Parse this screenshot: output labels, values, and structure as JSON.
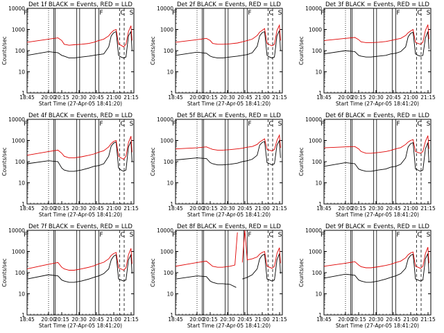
{
  "figure": {
    "panel_title_suffix": "BLACK = Events, RED = LLD",
    "xlabel": "Start Time (27-Apr-05 18:41:20)",
    "ylabel": "Counts/sec",
    "xticks": [
      "18:45",
      "20:00",
      "20:15",
      "20:30",
      "20:45",
      "21:00",
      "21:15"
    ],
    "yticks": [
      "1",
      "10",
      "100",
      "1000",
      "10000"
    ],
    "colors": {
      "events": "#000000",
      "lld": "#e00000",
      "axes": "#000000"
    }
  },
  "chart_data": [
    {
      "type": "line",
      "title": "Det 1f",
      "xlabel": "Start Time (27-Apr-05 18:41:20)",
      "ylabel": "Counts/sec",
      "xlim_min": [
        -3.7,
        36
      ],
      "ylim": [
        1,
        10000
      ],
      "ylog": true,
      "markers": [
        "F",
        "C",
        "S"
      ],
      "series": [
        {
          "name": "Events",
          "color": "#000000",
          "x": [
            -3.7,
            0,
            5,
            7,
            8,
            10,
            12,
            15,
            18,
            20,
            22,
            24,
            26,
            27,
            28,
            29,
            30,
            31,
            32,
            33,
            34,
            35,
            36
          ],
          "y": [
            60,
            90,
            80,
            60,
            55,
            45,
            45,
            50,
            55,
            60,
            65,
            70,
            150,
            500,
            700,
            800,
            60,
            50,
            45,
            50,
            500,
            800,
            100
          ]
        },
        {
          "name": "LLD",
          "color": "#e00000",
          "x": [
            -3.7,
            0,
            5,
            7,
            8,
            10,
            12,
            15,
            18,
            20,
            22,
            24,
            26,
            27,
            28,
            29,
            30,
            31,
            32,
            33,
            34,
            35,
            36
          ],
          "y": [
            250,
            350,
            400,
            300,
            200,
            180,
            190,
            200,
            220,
            250,
            300,
            350,
            500,
            700,
            900,
            1000,
            200,
            180,
            150,
            200,
            800,
            1500,
            300
          ]
        }
      ]
    },
    {
      "type": "line",
      "title": "Det 2f",
      "xlabel": "Start Time (27-Apr-05 18:41:20)",
      "ylabel": "Counts/sec",
      "xlim_min": [
        -3.7,
        36
      ],
      "ylim": [
        1,
        10000
      ],
      "ylog": true,
      "markers": [
        "F",
        "C",
        "S"
      ],
      "series": [
        {
          "name": "Events",
          "color": "#000000",
          "x": [
            -3.7,
            0,
            5,
            7,
            8,
            10,
            12,
            15,
            18,
            20,
            22,
            24,
            26,
            27,
            28,
            29,
            30,
            31,
            32,
            33,
            34,
            35,
            36
          ],
          "y": [
            60,
            85,
            75,
            55,
            50,
            45,
            45,
            50,
            55,
            60,
            65,
            80,
            160,
            500,
            700,
            800,
            60,
            50,
            45,
            50,
            500,
            900,
            100
          ]
        },
        {
          "name": "LLD",
          "color": "#e00000",
          "x": [
            -3.7,
            0,
            5,
            7,
            8,
            10,
            12,
            15,
            18,
            20,
            22,
            24,
            26,
            27,
            28,
            29,
            30,
            31,
            32,
            33,
            34,
            35,
            36
          ],
          "y": [
            250,
            330,
            380,
            300,
            220,
            200,
            200,
            210,
            230,
            260,
            300,
            350,
            520,
            750,
            900,
            1100,
            220,
            190,
            170,
            200,
            900,
            1600,
            300
          ]
        }
      ]
    },
    {
      "type": "line",
      "title": "Det 3f",
      "xlabel": "Start Time (27-Apr-05 18:41:20)",
      "ylabel": "Counts/sec",
      "xlim_min": [
        -3.7,
        36
      ],
      "ylim": [
        1,
        10000
      ],
      "ylog": true,
      "markers": [
        "F",
        "C",
        "S"
      ],
      "series": [
        {
          "name": "Events",
          "color": "#000000",
          "x": [
            -3.7,
            0,
            5,
            7,
            8,
            10,
            12,
            15,
            18,
            20,
            22,
            24,
            26,
            27,
            28,
            29,
            30,
            31,
            32,
            33,
            34,
            35,
            36
          ],
          "y": [
            70,
            100,
            90,
            60,
            55,
            50,
            50,
            55,
            60,
            70,
            75,
            90,
            150,
            450,
            650,
            750,
            70,
            60,
            55,
            60,
            400,
            800,
            120
          ]
        },
        {
          "name": "LLD",
          "color": "#e00000",
          "x": [
            -3.7,
            0,
            5,
            7,
            8,
            10,
            12,
            15,
            18,
            20,
            22,
            24,
            26,
            27,
            28,
            29,
            30,
            31,
            32,
            33,
            34,
            35,
            36
          ],
          "y": [
            300,
            380,
            420,
            330,
            260,
            240,
            240,
            250,
            270,
            300,
            340,
            380,
            520,
            700,
            850,
            1000,
            250,
            220,
            200,
            250,
            900,
            1700,
            350
          ]
        }
      ]
    },
    {
      "type": "line",
      "title": "Det 4f",
      "xlabel": "Start Time (27-Apr-05 18:41:20)",
      "ylabel": "Counts/sec",
      "xlim_min": [
        -3.7,
        36
      ],
      "ylim": [
        1,
        10000
      ],
      "ylog": true,
      "markers": [
        "F",
        "C",
        "S"
      ],
      "series": [
        {
          "name": "Events",
          "color": "#000000",
          "x": [
            -3.7,
            0,
            5,
            7,
            8,
            10,
            12,
            15,
            18,
            20,
            22,
            24,
            26,
            27,
            28,
            29,
            30,
            31,
            32,
            33,
            34,
            35,
            36
          ],
          "y": [
            80,
            110,
            100,
            50,
            40,
            35,
            35,
            40,
            50,
            60,
            65,
            80,
            180,
            550,
            750,
            850,
            50,
            40,
            35,
            40,
            500,
            900,
            100
          ]
        },
        {
          "name": "LLD",
          "color": "#e00000",
          "x": [
            -3.7,
            0,
            5,
            7,
            8,
            10,
            12,
            15,
            18,
            20,
            22,
            24,
            26,
            27,
            28,
            29,
            30,
            31,
            32,
            33,
            34,
            35,
            36
          ],
          "y": [
            200,
            300,
            350,
            250,
            180,
            150,
            150,
            170,
            200,
            230,
            280,
            330,
            500,
            720,
            900,
            1000,
            180,
            150,
            130,
            180,
            800,
            1600,
            280
          ]
        }
      ]
    },
    {
      "type": "line",
      "title": "Det 5f",
      "xlabel": "Start Time (27-Apr-05 18:41:20)",
      "ylabel": "Counts/sec",
      "xlim_min": [
        -3.7,
        36
      ],
      "ylim": [
        1,
        10000
      ],
      "ylog": true,
      "markers": [
        "F",
        "C",
        "S"
      ],
      "series": [
        {
          "name": "Events",
          "color": "#000000",
          "x": [
            -3.7,
            0,
            5,
            7,
            8,
            10,
            12,
            15,
            18,
            20,
            22,
            24,
            26,
            27,
            28,
            29,
            30,
            31,
            32,
            33,
            34,
            35,
            36
          ],
          "y": [
            120,
            150,
            140,
            90,
            80,
            70,
            70,
            75,
            85,
            100,
            110,
            130,
            200,
            600,
            800,
            900,
            90,
            80,
            70,
            80,
            600,
            1000,
            150
          ]
        },
        {
          "name": "LLD",
          "color": "#e00000",
          "x": [
            -3.7,
            0,
            5,
            7,
            8,
            10,
            12,
            15,
            18,
            20,
            22,
            24,
            26,
            27,
            28,
            29,
            30,
            31,
            32,
            33,
            34,
            35,
            36
          ],
          "y": [
            400,
            450,
            500,
            420,
            380,
            350,
            350,
            370,
            400,
            430,
            480,
            520,
            650,
            850,
            1000,
            1200,
            380,
            350,
            320,
            380,
            1000,
            1800,
            450
          ]
        }
      ]
    },
    {
      "type": "line",
      "title": "Det 6f",
      "xlabel": "Start Time (27-Apr-05 18:41:20)",
      "ylabel": "Counts/sec",
      "xlim_min": [
        -3.7,
        36
      ],
      "ylim": [
        1,
        10000
      ],
      "ylog": true,
      "markers": [
        "F",
        "C",
        "S"
      ],
      "series": [
        {
          "name": "Events",
          "color": "#000000",
          "x": [
            -3.7,
            0,
            5,
            7,
            8,
            10,
            12,
            15,
            18,
            20,
            22,
            24,
            26,
            27,
            28,
            29,
            30,
            31,
            32,
            33,
            34,
            35,
            36
          ],
          "y": [
            60,
            90,
            80,
            45,
            40,
            35,
            35,
            40,
            45,
            55,
            60,
            75,
            150,
            500,
            700,
            800,
            45,
            40,
            35,
            40,
            400,
            800,
            90
          ]
        },
        {
          "name": "LLD",
          "color": "#e00000",
          "x": [
            -3.7,
            0,
            5,
            7,
            8,
            10,
            12,
            15,
            18,
            20,
            22,
            24,
            26,
            27,
            28,
            29,
            30,
            31,
            32,
            33,
            34,
            35,
            36
          ],
          "y": [
            450,
            500,
            520,
            400,
            300,
            250,
            250,
            270,
            300,
            340,
            400,
            460,
            650,
            850,
            1000,
            1100,
            300,
            270,
            250,
            300,
            900,
            1700,
            400
          ]
        }
      ]
    },
    {
      "type": "line",
      "title": "Det 7f",
      "xlabel": "Start Time (27-Apr-05 18:41:20)",
      "ylabel": "Counts/sec",
      "xlim_min": [
        -3.7,
        36
      ],
      "ylim": [
        1,
        10000
      ],
      "ylog": true,
      "markers": [
        "F",
        "C",
        "S"
      ],
      "series": [
        {
          "name": "Events",
          "color": "#000000",
          "x": [
            -3.7,
            0,
            5,
            7,
            8,
            10,
            12,
            15,
            18,
            20,
            22,
            24,
            26,
            27,
            28,
            29,
            30,
            31,
            32,
            33,
            34,
            35,
            36
          ],
          "y": [
            50,
            80,
            70,
            45,
            40,
            35,
            35,
            40,
            50,
            60,
            70,
            90,
            150,
            400,
            600,
            700,
            50,
            45,
            40,
            45,
            400,
            700,
            90
          ]
        },
        {
          "name": "LLD",
          "color": "#e00000",
          "x": [
            -3.7,
            0,
            5,
            7,
            8,
            10,
            12,
            15,
            18,
            20,
            22,
            24,
            26,
            27,
            28,
            29,
            30,
            31,
            32,
            33,
            34,
            35,
            36
          ],
          "y": [
            150,
            250,
            300,
            180,
            150,
            130,
            130,
            150,
            180,
            210,
            260,
            310,
            450,
            650,
            800,
            900,
            170,
            150,
            130,
            170,
            700,
            1400,
            260
          ]
        }
      ]
    },
    {
      "type": "line",
      "title": "Det 8f",
      "xlabel": "Start Time (27-Apr-05 18:41:20)",
      "ylabel": "Counts/sec",
      "xlim_min": [
        -3.7,
        36
      ],
      "ylim": [
        1,
        10000
      ],
      "ylog": true,
      "markers": [
        "F",
        "C",
        "S"
      ],
      "series": [
        {
          "name": "Events",
          "color": "#000000",
          "x": [
            -3.7,
            0,
            5,
            7,
            8,
            10,
            12,
            15,
            17.5,
            18,
            20,
            22,
            24,
            26,
            27,
            28,
            29,
            30,
            31,
            32,
            33,
            34,
            35,
            36
          ],
          "y": [
            50,
            70,
            65,
            40,
            35,
            30,
            30,
            28,
            20,
            null,
            50,
            60,
            80,
            150,
            450,
            650,
            750,
            50,
            45,
            40,
            45,
            400,
            800,
            90
          ]
        },
        {
          "name": "LLD",
          "color": "#e00000",
          "x": [
            -3.7,
            0,
            5,
            7,
            8,
            10,
            12,
            15,
            17,
            18,
            19,
            20,
            21,
            22,
            24,
            26,
            27,
            28,
            29,
            30,
            31,
            32,
            33,
            34,
            35,
            36
          ],
          "y": [
            200,
            300,
            350,
            250,
            200,
            180,
            180,
            200,
            230,
            8000,
            null,
            300,
            10000,
            400,
            450,
            550,
            750,
            900,
            1000,
            200,
            180,
            160,
            200,
            800,
            1500,
            280
          ]
        }
      ]
    },
    {
      "type": "line",
      "title": "Det 9f",
      "xlabel": "Start Time (27-Apr-05 18:41:20)",
      "ylabel": "Counts/sec",
      "xlim_min": [
        -3.7,
        36
      ],
      "ylim": [
        1,
        10000
      ],
      "ylog": true,
      "markers": [
        "F",
        "C",
        "S"
      ],
      "series": [
        {
          "name": "Events",
          "color": "#000000",
          "x": [
            -3.7,
            0,
            5,
            7,
            8,
            10,
            12,
            15,
            18,
            20,
            22,
            24,
            26,
            27,
            28,
            29,
            30,
            31,
            32,
            33,
            34,
            35,
            36
          ],
          "y": [
            55,
            85,
            75,
            45,
            40,
            35,
            35,
            40,
            50,
            60,
            70,
            90,
            160,
            450,
            650,
            750,
            50,
            45,
            40,
            45,
            450,
            800,
            90
          ]
        },
        {
          "name": "LLD",
          "color": "#e00000",
          "x": [
            -3.7,
            0,
            5,
            7,
            8,
            10,
            12,
            15,
            18,
            20,
            22,
            24,
            26,
            27,
            28,
            29,
            30,
            31,
            32,
            33,
            34,
            35,
            36
          ],
          "y": [
            200,
            280,
            330,
            230,
            190,
            170,
            170,
            190,
            220,
            250,
            300,
            350,
            500,
            700,
            850,
            950,
            200,
            180,
            160,
            200,
            800,
            1600,
            280
          ]
        }
      ]
    }
  ]
}
